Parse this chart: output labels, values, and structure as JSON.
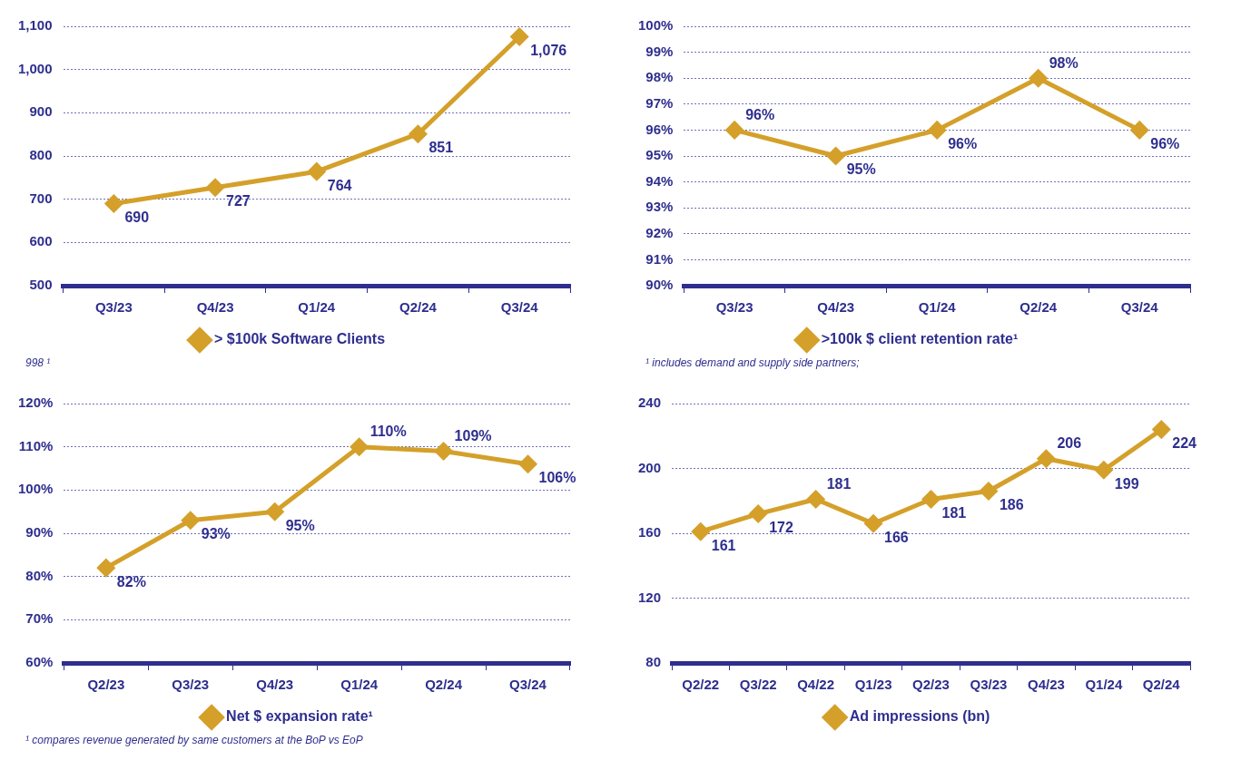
{
  "chart_data": [
    {
      "type": "line",
      "categories": [
        "Q3/23",
        "Q4/23",
        "Q1/24",
        "Q2/24",
        "Q3/24"
      ],
      "series": [
        {
          "name": "> $100k Software Clients",
          "color": "#d4a02a",
          "values": [
            690,
            727,
            764,
            851,
            1076
          ],
          "value_labels": [
            "690",
            "727",
            "764",
            "851",
            "1,076"
          ]
        }
      ],
      "ylim": [
        500,
        1100
      ],
      "yticks": [
        500,
        600,
        700,
        800,
        900,
        {
          "value": 1000,
          "label": "1,000"
        },
        {
          "value": 1100,
          "label": "1,100"
        }
      ],
      "grid": "y",
      "legend": "bottom",
      "marker": "diamond",
      "line_style": "solid",
      "annotations": [
        "998 ¹"
      ]
    },
    {
      "type": "line",
      "categories": [
        "Q3/23",
        "Q4/23",
        "Q1/24",
        "Q2/24",
        "Q3/24"
      ],
      "series": [
        {
          "name": ">100k $ client retention rate¹",
          "color": "#d4a02a",
          "values": [
            96,
            95,
            96,
            98,
            96
          ],
          "value_labels": [
            "96%",
            "95%",
            "96%",
            "98%",
            "96%"
          ]
        }
      ],
      "ylim": [
        90,
        100
      ],
      "yticks": [
        {
          "value": 90,
          "label": "90%"
        },
        {
          "value": 91,
          "label": "91%"
        },
        {
          "value": 92,
          "label": "92%"
        },
        {
          "value": 93,
          "label": "93%"
        },
        {
          "value": 94,
          "label": "94%"
        },
        {
          "value": 95,
          "label": "95%"
        },
        {
          "value": 96,
          "label": "96%"
        },
        {
          "value": 97,
          "label": "97%"
        },
        {
          "value": 98,
          "label": "98%"
        },
        {
          "value": 99,
          "label": "99%"
        },
        {
          "value": 100,
          "label": "100%"
        }
      ],
      "grid": "y",
      "legend": "bottom",
      "marker": "diamond",
      "line_style": "solid",
      "annotations": [
        "¹ includes demand and supply side partners;"
      ]
    },
    {
      "type": "line",
      "categories": [
        "Q2/23",
        "Q3/23",
        "Q4/23",
        "Q1/24",
        "Q2/24",
        "Q3/24"
      ],
      "series": [
        {
          "name": "Net $ expansion rate¹",
          "color": "#d4a02a",
          "values": [
            82,
            93,
            95,
            110,
            109,
            106
          ],
          "value_labels": [
            "82%",
            "93%",
            "95%",
            "110%",
            "109%",
            "106%"
          ]
        }
      ],
      "ylim": [
        60,
        120
      ],
      "yticks": [
        {
          "value": 60,
          "label": "60%"
        },
        {
          "value": 70,
          "label": "70%"
        },
        {
          "value": 80,
          "label": "80%"
        },
        {
          "value": 90,
          "label": "90%"
        },
        {
          "value": 100,
          "label": "100%"
        },
        {
          "value": 110,
          "label": "110%"
        },
        {
          "value": 120,
          "label": "120%"
        }
      ],
      "grid": "y",
      "legend": "bottom",
      "marker": "diamond",
      "line_style": "solid",
      "annotations": [
        "¹ compares revenue generated by same customers at the BoP vs EoP"
      ]
    },
    {
      "type": "line",
      "categories": [
        "Q2/22",
        "Q3/22",
        "Q4/22",
        "Q1/23",
        "Q2/23",
        "Q3/23",
        "Q4/23",
        "Q1/24",
        "Q2/24"
      ],
      "series": [
        {
          "name": "Ad impressions (bn)",
          "color": "#d4a02a",
          "values": [
            161,
            172,
            181,
            166,
            181,
            186,
            206,
            199,
            224
          ]
        }
      ],
      "ylim": [
        80,
        240
      ],
      "yticks": [
        80,
        120,
        160,
        200,
        240
      ],
      "grid": "y",
      "legend": "bottom",
      "marker": "diamond",
      "line_style": "solid",
      "data_labels": true
    }
  ]
}
